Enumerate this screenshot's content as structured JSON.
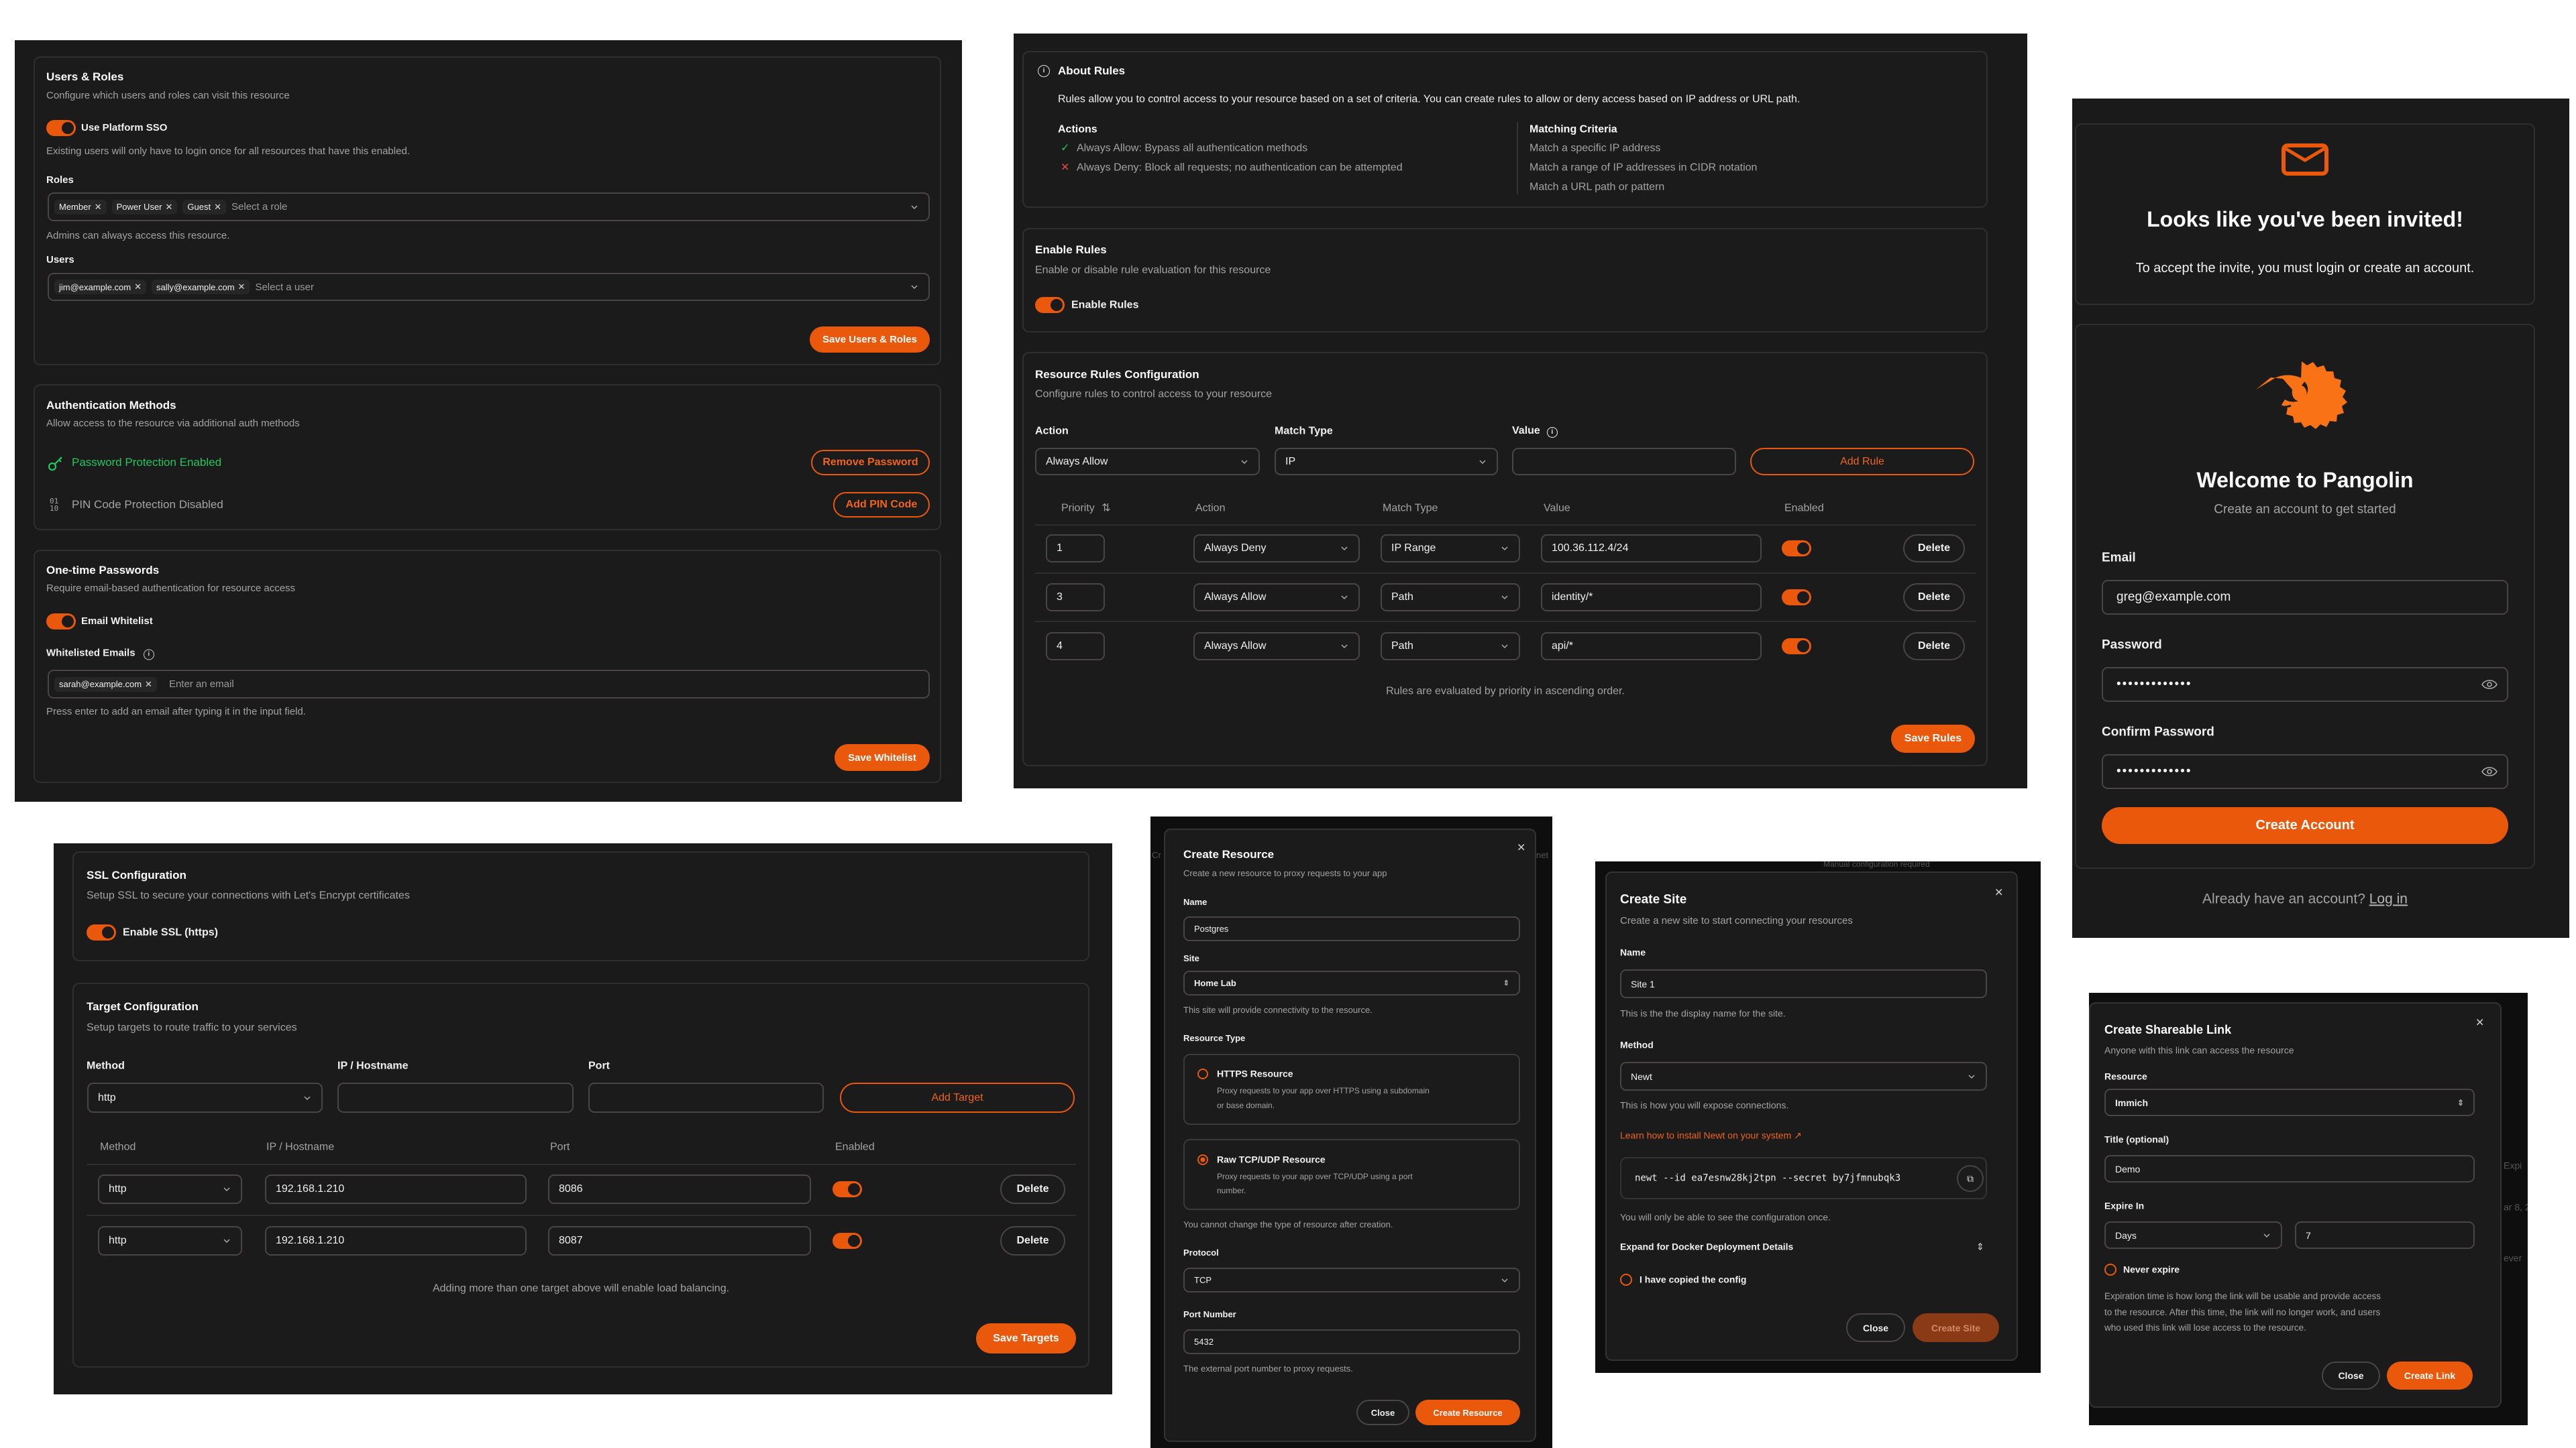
{
  "accent_color": "#ea580c",
  "success_color": "#22c55e",
  "access_panel": {
    "users_roles": {
      "title": "Users & Roles",
      "description": "Configure which users and roles can visit this resource",
      "sso_label": "Use Platform SSO",
      "sso_enabled": true,
      "sso_help": "Existing users will only have to login once for all resources that have this enabled.",
      "roles_label": "Roles",
      "roles": [
        "Member",
        "Power User",
        "Guest"
      ],
      "roles_placeholder": "Select a role",
      "roles_help": "Admins can always access this resource.",
      "users_label": "Users",
      "users": [
        "jim@example.com",
        "sally@example.com"
      ],
      "users_placeholder": "Select a user",
      "save": "Save Users & Roles"
    },
    "auth": {
      "title": "Authentication Methods",
      "description": "Allow access to the resource via additional auth methods",
      "password_status": "Password Protection Enabled",
      "remove_password": "Remove Password",
      "pin_status": "PIN Code Protection Disabled",
      "add_pin": "Add PIN Code"
    },
    "otp": {
      "title": "One-time Passwords",
      "description": "Require email-based authentication for resource access",
      "whitelist_label": "Email Whitelist",
      "whitelist_enabled": true,
      "emails_label": "Whitelisted Emails",
      "emails": [
        "sarah@example.com"
      ],
      "email_placeholder": "Enter an email",
      "help": "Press enter to add an email after typing it in the input field.",
      "save": "Save Whitelist"
    }
  },
  "rules_panel": {
    "about": {
      "title": "About Rules",
      "text": "Rules allow you to control access to your resource based on a set of criteria. You can create rules to allow or deny access based on IP address or URL path.",
      "actions_title": "Actions",
      "actions": [
        "Always Allow: Bypass all authentication methods",
        "Always Deny: Block all requests; no authentication can be attempted"
      ],
      "criteria_title": "Matching Criteria",
      "criteria": [
        "Match a specific IP address",
        "Match a range of IP addresses in CIDR notation",
        "Match a URL path or pattern"
      ]
    },
    "enable": {
      "title": "Enable Rules",
      "description": "Enable or disable rule evaluation for this resource",
      "toggle_label": "Enable Rules",
      "enabled": true
    },
    "config": {
      "title": "Resource Rules Configuration",
      "description": "Configure rules to control access to your resource",
      "action_label": "Action",
      "action_value": "Always Allow",
      "match_label": "Match Type",
      "match_value": "IP",
      "value_label": "Value",
      "value_input": "",
      "add": "Add Rule",
      "columns": [
        "Priority",
        "Action",
        "Match Type",
        "Value",
        "Enabled"
      ],
      "rows": [
        {
          "priority": "1",
          "action": "Always Deny",
          "match": "IP Range",
          "value": "100.36.112.4/24",
          "enabled": true,
          "delete": "Delete"
        },
        {
          "priority": "3",
          "action": "Always Allow",
          "match": "Path",
          "value": "identity/*",
          "enabled": true,
          "delete": "Delete"
        },
        {
          "priority": "4",
          "action": "Always Allow",
          "match": "Path",
          "value": "api/*",
          "enabled": true,
          "delete": "Delete"
        }
      ],
      "note": "Rules are evaluated by priority in ascending order.",
      "save": "Save Rules"
    }
  },
  "invite_panel": {
    "title": "Looks like you've been invited!",
    "subtitle": "To accept the invite, you must login or create an account.",
    "welcome": "Welcome to Pangolin",
    "welcome_sub": "Create an account to get started",
    "email_label": "Email",
    "email_value": "greg@example.com",
    "password_label": "Password",
    "password_value": "•••••••••••••",
    "confirm_label": "Confirm Password",
    "confirm_value": "•••••••••••••",
    "submit": "Create Account",
    "login_prompt": "Already have an account?",
    "login_link": "Log in"
  },
  "targets_panel": {
    "ssl": {
      "title": "SSL Configuration",
      "description": "Setup SSL to secure your connections with Let's Encrypt certificates",
      "toggle_label": "Enable SSL (https)",
      "enabled": true
    },
    "targets": {
      "title": "Target Configuration",
      "description": "Setup targets to route traffic to your services",
      "method_label": "Method",
      "method_value": "http",
      "host_label": "IP / Hostname",
      "port_label": "Port",
      "add": "Add Target",
      "columns": [
        "Method",
        "IP / Hostname",
        "Port",
        "Enabled"
      ],
      "rows": [
        {
          "method": "http",
          "host": "192.168.1.210",
          "port": "8086",
          "enabled": true,
          "delete": "Delete"
        },
        {
          "method": "http",
          "host": "192.168.1.210",
          "port": "8087",
          "enabled": true,
          "delete": "Delete"
        }
      ],
      "note": "Adding more than one target above will enable load balancing.",
      "save": "Save Targets"
    }
  },
  "create_resource": {
    "bg_left": "Cr",
    "bg_right": "net",
    "title": "Create Resource",
    "subtitle": "Create a new resource to proxy requests to your app",
    "name_label": "Name",
    "name_value": "Postgres",
    "site_label": "Site",
    "site_value": "Home Lab",
    "site_help": "This site will provide connectivity to the resource.",
    "type_label": "Resource Type",
    "types": [
      {
        "title": "HTTPS Resource",
        "desc1": "Proxy requests to your app over HTTPS using a subdomain",
        "desc2": "or base domain.",
        "selected": false
      },
      {
        "title": "Raw TCP/UDP Resource",
        "desc1": "Proxy requests to your app over TCP/UDP using a port",
        "desc2": "number.",
        "selected": true
      }
    ],
    "type_help": "You cannot change the type of resource after creation.",
    "protocol_label": "Protocol",
    "protocol_value": "TCP",
    "port_label": "Port Number",
    "port_value": "5432",
    "port_help": "The external port number to proxy requests.",
    "close": "Close",
    "submit": "Create Resource"
  },
  "create_site": {
    "bg_text": "Manual configuration required",
    "title": "Create Site",
    "subtitle": "Create a new site to start connecting your resources",
    "name_label": "Name",
    "name_value": "Site 1",
    "name_help": "This is the the display name for the site.",
    "method_label": "Method",
    "method_value": "Newt",
    "method_help": "This is how you will expose connections.",
    "install_link": "Learn how to install Newt on your system",
    "command": "newt --id ea7esnw28kj2tpn --secret by7jfmnubqk3",
    "config_help": "You will only be able to see the configuration once.",
    "docker_label": "Expand for Docker Deployment Details",
    "copied_label": "I have copied the config",
    "copied": false,
    "close": "Close",
    "submit": "Create Site"
  },
  "share_link": {
    "bg_texts": [
      "Expi",
      "ar 8, 2",
      "ever"
    ],
    "title": "Create Shareable Link",
    "subtitle": "Anyone with this link can access the resource",
    "resource_label": "Resource",
    "resource_value": "Immich",
    "title_label": "Title (optional)",
    "title_value": "Demo",
    "expire_label": "Expire In",
    "expire_unit": "Days",
    "expire_value": "7",
    "never_label": "Never expire",
    "never": false,
    "help": [
      "Expiration time is how long the link will be usable and provide access",
      "to the resource. After this time, the link will no longer work, and users",
      "who used this link will lose access to the resource."
    ],
    "close": "Close",
    "submit": "Create Link"
  }
}
